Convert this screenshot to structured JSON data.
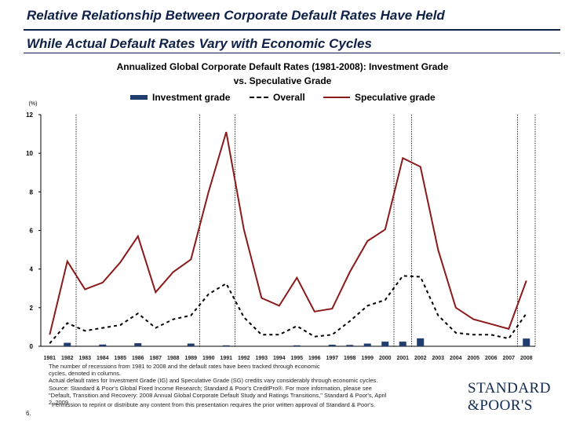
{
  "slide": {
    "title_line1": "Relative Relationship Between Corporate Default Rates Have Held",
    "title_line2": "While Actual Default Rates Vary with Economic Cycles",
    "slide_number": "6.",
    "note_lines": [
      "The number of recessions from 1981 to 2008 and the default rates have been tracked through economic",
      "cycles, denoted in columns.",
      "Actual default rates for Investment Grade (IG) and Speculative Grade (SG) credits vary considerably through economic cycles.",
      "Source: Standard & Poor's Global Fixed Income Research; Standard & Poor's CreditPro®. For more information, please see",
      "\"Default, Transition and Recovery: 2008 Annual Global Corporate Default Study and Ratings Transitions,\" Standard & Poor's, April",
      "2, 2009."
    ],
    "permission": "Permission to reprint or distribute any content from this presentation requires the prior written approval of Standard & Poor's.",
    "logo_line1": "STANDARD",
    "logo_line2": "&POOR'S"
  },
  "colors": {
    "title": "#0f2147",
    "investment": "#1f3d6e",
    "overall": "#000000",
    "speculative": "#8b1a1a"
  },
  "chart_data": {
    "type": "bar+line",
    "title_line1": "Annualized Global Corporate Default Rates (1981-2008): Investment Grade",
    "title_line2": "vs. Speculative Grade",
    "ylabel": "(%)",
    "ylim": [
      0,
      12
    ],
    "yticks": [
      0,
      2,
      4,
      6,
      8,
      10,
      12
    ],
    "categories": [
      "1981",
      "1982",
      "1983",
      "1984",
      "1985",
      "1986",
      "1987",
      "1988",
      "1989",
      "1990",
      "1991",
      "1992",
      "1993",
      "1994",
      "1995",
      "1996",
      "1997",
      "1998",
      "1999",
      "2000",
      "2001",
      "2002",
      "2003",
      "2004",
      "2005",
      "2006",
      "2007",
      "2008"
    ],
    "recession_bands": [
      [
        "1981",
        "1982"
      ],
      [
        "1990",
        "1991"
      ],
      [
        "2001",
        "2001"
      ],
      [
        "2008",
        "2008"
      ]
    ],
    "series": [
      {
        "name": "Investment grade",
        "kind": "bar",
        "values": [
          0.0,
          0.18,
          0.0,
          0.09,
          0.0,
          0.16,
          0.0,
          0.0,
          0.14,
          0.0,
          0.05,
          0.0,
          0.0,
          0.0,
          0.05,
          0.0,
          0.08,
          0.07,
          0.14,
          0.24,
          0.24,
          0.41,
          0.0,
          0.0,
          0.0,
          0.0,
          0.0,
          0.4
        ]
      },
      {
        "name": "Overall",
        "kind": "dashed-line",
        "values": [
          0.15,
          1.2,
          0.8,
          0.95,
          1.1,
          1.7,
          0.95,
          1.4,
          1.6,
          2.7,
          3.25,
          1.5,
          0.6,
          0.6,
          1.05,
          0.5,
          0.6,
          1.3,
          2.1,
          2.4,
          3.65,
          3.6,
          1.6,
          0.7,
          0.6,
          0.6,
          0.4,
          1.7
        ]
      },
      {
        "name": "Speculative grade",
        "kind": "line",
        "values": [
          0.6,
          4.4,
          2.95,
          3.3,
          4.35,
          5.7,
          2.8,
          3.85,
          4.5,
          8.0,
          11.1,
          6.05,
          2.5,
          2.1,
          3.55,
          1.8,
          1.95,
          3.85,
          5.45,
          6.05,
          9.75,
          9.3,
          5.0,
          2.0,
          1.4,
          1.15,
          0.9,
          3.4
        ]
      }
    ]
  }
}
